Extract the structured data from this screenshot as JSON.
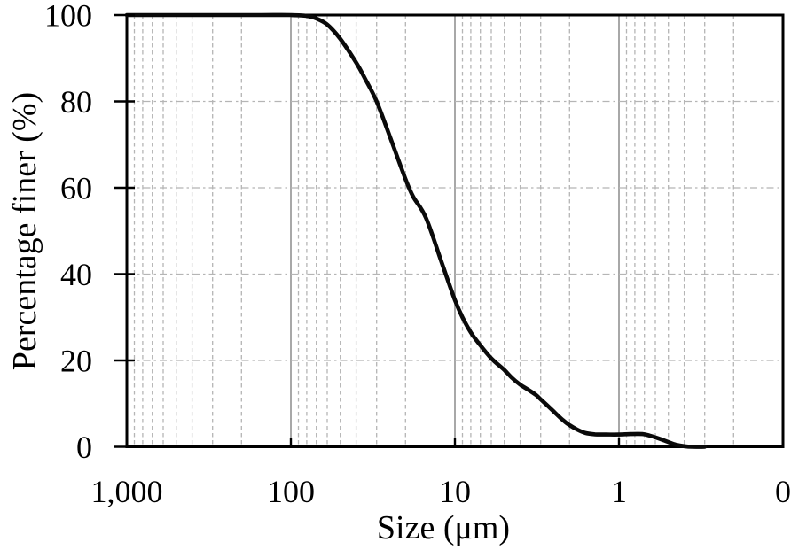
{
  "colors": {
    "background": "#ffffff",
    "curve": "#0a0a0a",
    "frame": "#000000",
    "major_grid": "#8c8c8c",
    "minor_grid": "#b5b5b5",
    "text": "#000000"
  },
  "chart_data": {
    "type": "line",
    "title": "",
    "xlabel": "Size (μm)",
    "ylabel": "Percentage finer (%)",
    "x_scale": "log_reversed",
    "xlim": [
      1000,
      0.1
    ],
    "ylim": [
      0,
      100
    ],
    "x_tick_labels": [
      "1,000",
      "100",
      "10",
      "1",
      "0"
    ],
    "x_tick_values": [
      1000,
      100,
      10,
      1,
      0.1
    ],
    "y_tick_labels": [
      "100",
      "80",
      "60",
      "40",
      "20",
      "0"
    ],
    "y_tick_values": [
      100,
      80,
      60,
      40,
      20,
      0
    ],
    "grid": {
      "major_vertical_values": [
        100,
        10,
        1
      ],
      "minor_vertical": "log decades, multiples 2-9 per decade, dashed",
      "horizontal_values": [
        80,
        60,
        40,
        20
      ],
      "horizontal_style": "dashed"
    },
    "legend": "none",
    "series": [
      {
        "name": "percentage-finer-curve",
        "color": "#0a0a0a",
        "points_size_um_vs_percent": [
          [
            1000,
            100
          ],
          [
            500,
            100
          ],
          [
            250,
            100
          ],
          [
            150,
            100
          ],
          [
            100,
            100
          ],
          [
            80,
            99.8
          ],
          [
            70,
            99.2
          ],
          [
            60,
            97.8
          ],
          [
            50,
            94.5
          ],
          [
            40,
            89
          ],
          [
            35,
            85
          ],
          [
            30,
            80
          ],
          [
            25,
            72
          ],
          [
            20,
            62
          ],
          [
            18,
            58
          ],
          [
            15,
            53
          ],
          [
            12,
            42.5
          ],
          [
            10,
            34
          ],
          [
            9,
            30
          ],
          [
            8,
            26.5
          ],
          [
            7,
            23.5
          ],
          [
            6,
            20.5
          ],
          [
            5,
            17.8
          ],
          [
            4.5,
            16
          ],
          [
            4,
            14.4
          ],
          [
            3.6,
            13.3
          ],
          [
            3.2,
            12
          ],
          [
            3,
            11
          ],
          [
            2.6,
            8.8
          ],
          [
            2.2,
            6.2
          ],
          [
            2,
            5
          ],
          [
            1.8,
            4
          ],
          [
            1.6,
            3.2
          ],
          [
            1.4,
            2.9
          ],
          [
            1.2,
            2.85
          ],
          [
            1,
            2.85
          ],
          [
            0.85,
            2.95
          ],
          [
            0.72,
            2.95
          ],
          [
            0.65,
            2.6
          ],
          [
            0.6,
            2.2
          ],
          [
            0.55,
            1.7
          ],
          [
            0.5,
            1.1
          ],
          [
            0.45,
            0.5
          ],
          [
            0.4,
            0.15
          ],
          [
            0.36,
            0
          ],
          [
            0.3,
            0
          ]
        ]
      }
    ]
  }
}
